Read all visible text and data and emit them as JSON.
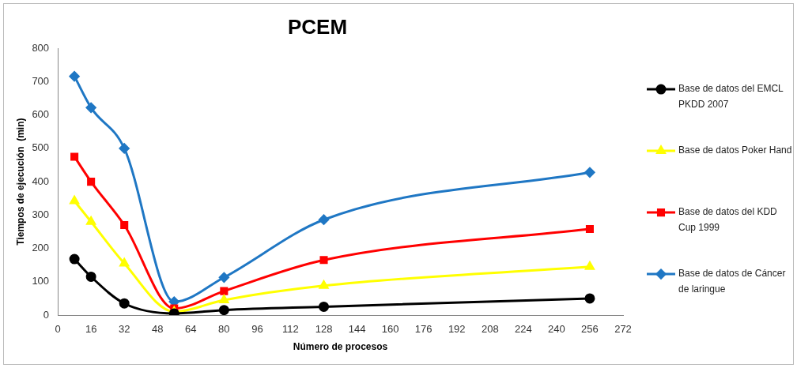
{
  "chart_data": {
    "type": "line",
    "title": "PCEM",
    "xlabel": "Número de procesos",
    "ylabel": "Tiempos de ejecución  (min)",
    "x": [
      8,
      16,
      32,
      56,
      80,
      128,
      256
    ],
    "xlim": [
      0,
      272
    ],
    "xticks": [
      0,
      16,
      32,
      48,
      64,
      80,
      96,
      112,
      128,
      144,
      160,
      176,
      192,
      208,
      224,
      240,
      256,
      272
    ],
    "ylim": [
      0,
      800
    ],
    "yticks": [
      0,
      100,
      200,
      300,
      400,
      500,
      600,
      700,
      800
    ],
    "grid": false,
    "legend": "right",
    "line_style": "solid",
    "series": [
      {
        "name": "Base de datos del EMCL PKDD 2007",
        "color": "#000000",
        "marker": "circle",
        "values": [
          168,
          115,
          35,
          5,
          15,
          25,
          50
        ]
      },
      {
        "name": "Base de datos Poker Hand",
        "color": "#ffff00",
        "marker": "triangle",
        "values": [
          342,
          280,
          155,
          10,
          45,
          88,
          145
        ]
      },
      {
        "name": "Base de datos del KDD Cup 1999",
        "color": "#ff0000",
        "marker": "square",
        "values": [
          475,
          400,
          270,
          20,
          72,
          165,
          258
        ]
      },
      {
        "name": "Base de datos de Cáncer de laringue",
        "color": "#1f77c4",
        "marker": "diamond",
        "values": [
          716,
          622,
          500,
          40,
          113,
          286,
          428
        ]
      }
    ]
  }
}
